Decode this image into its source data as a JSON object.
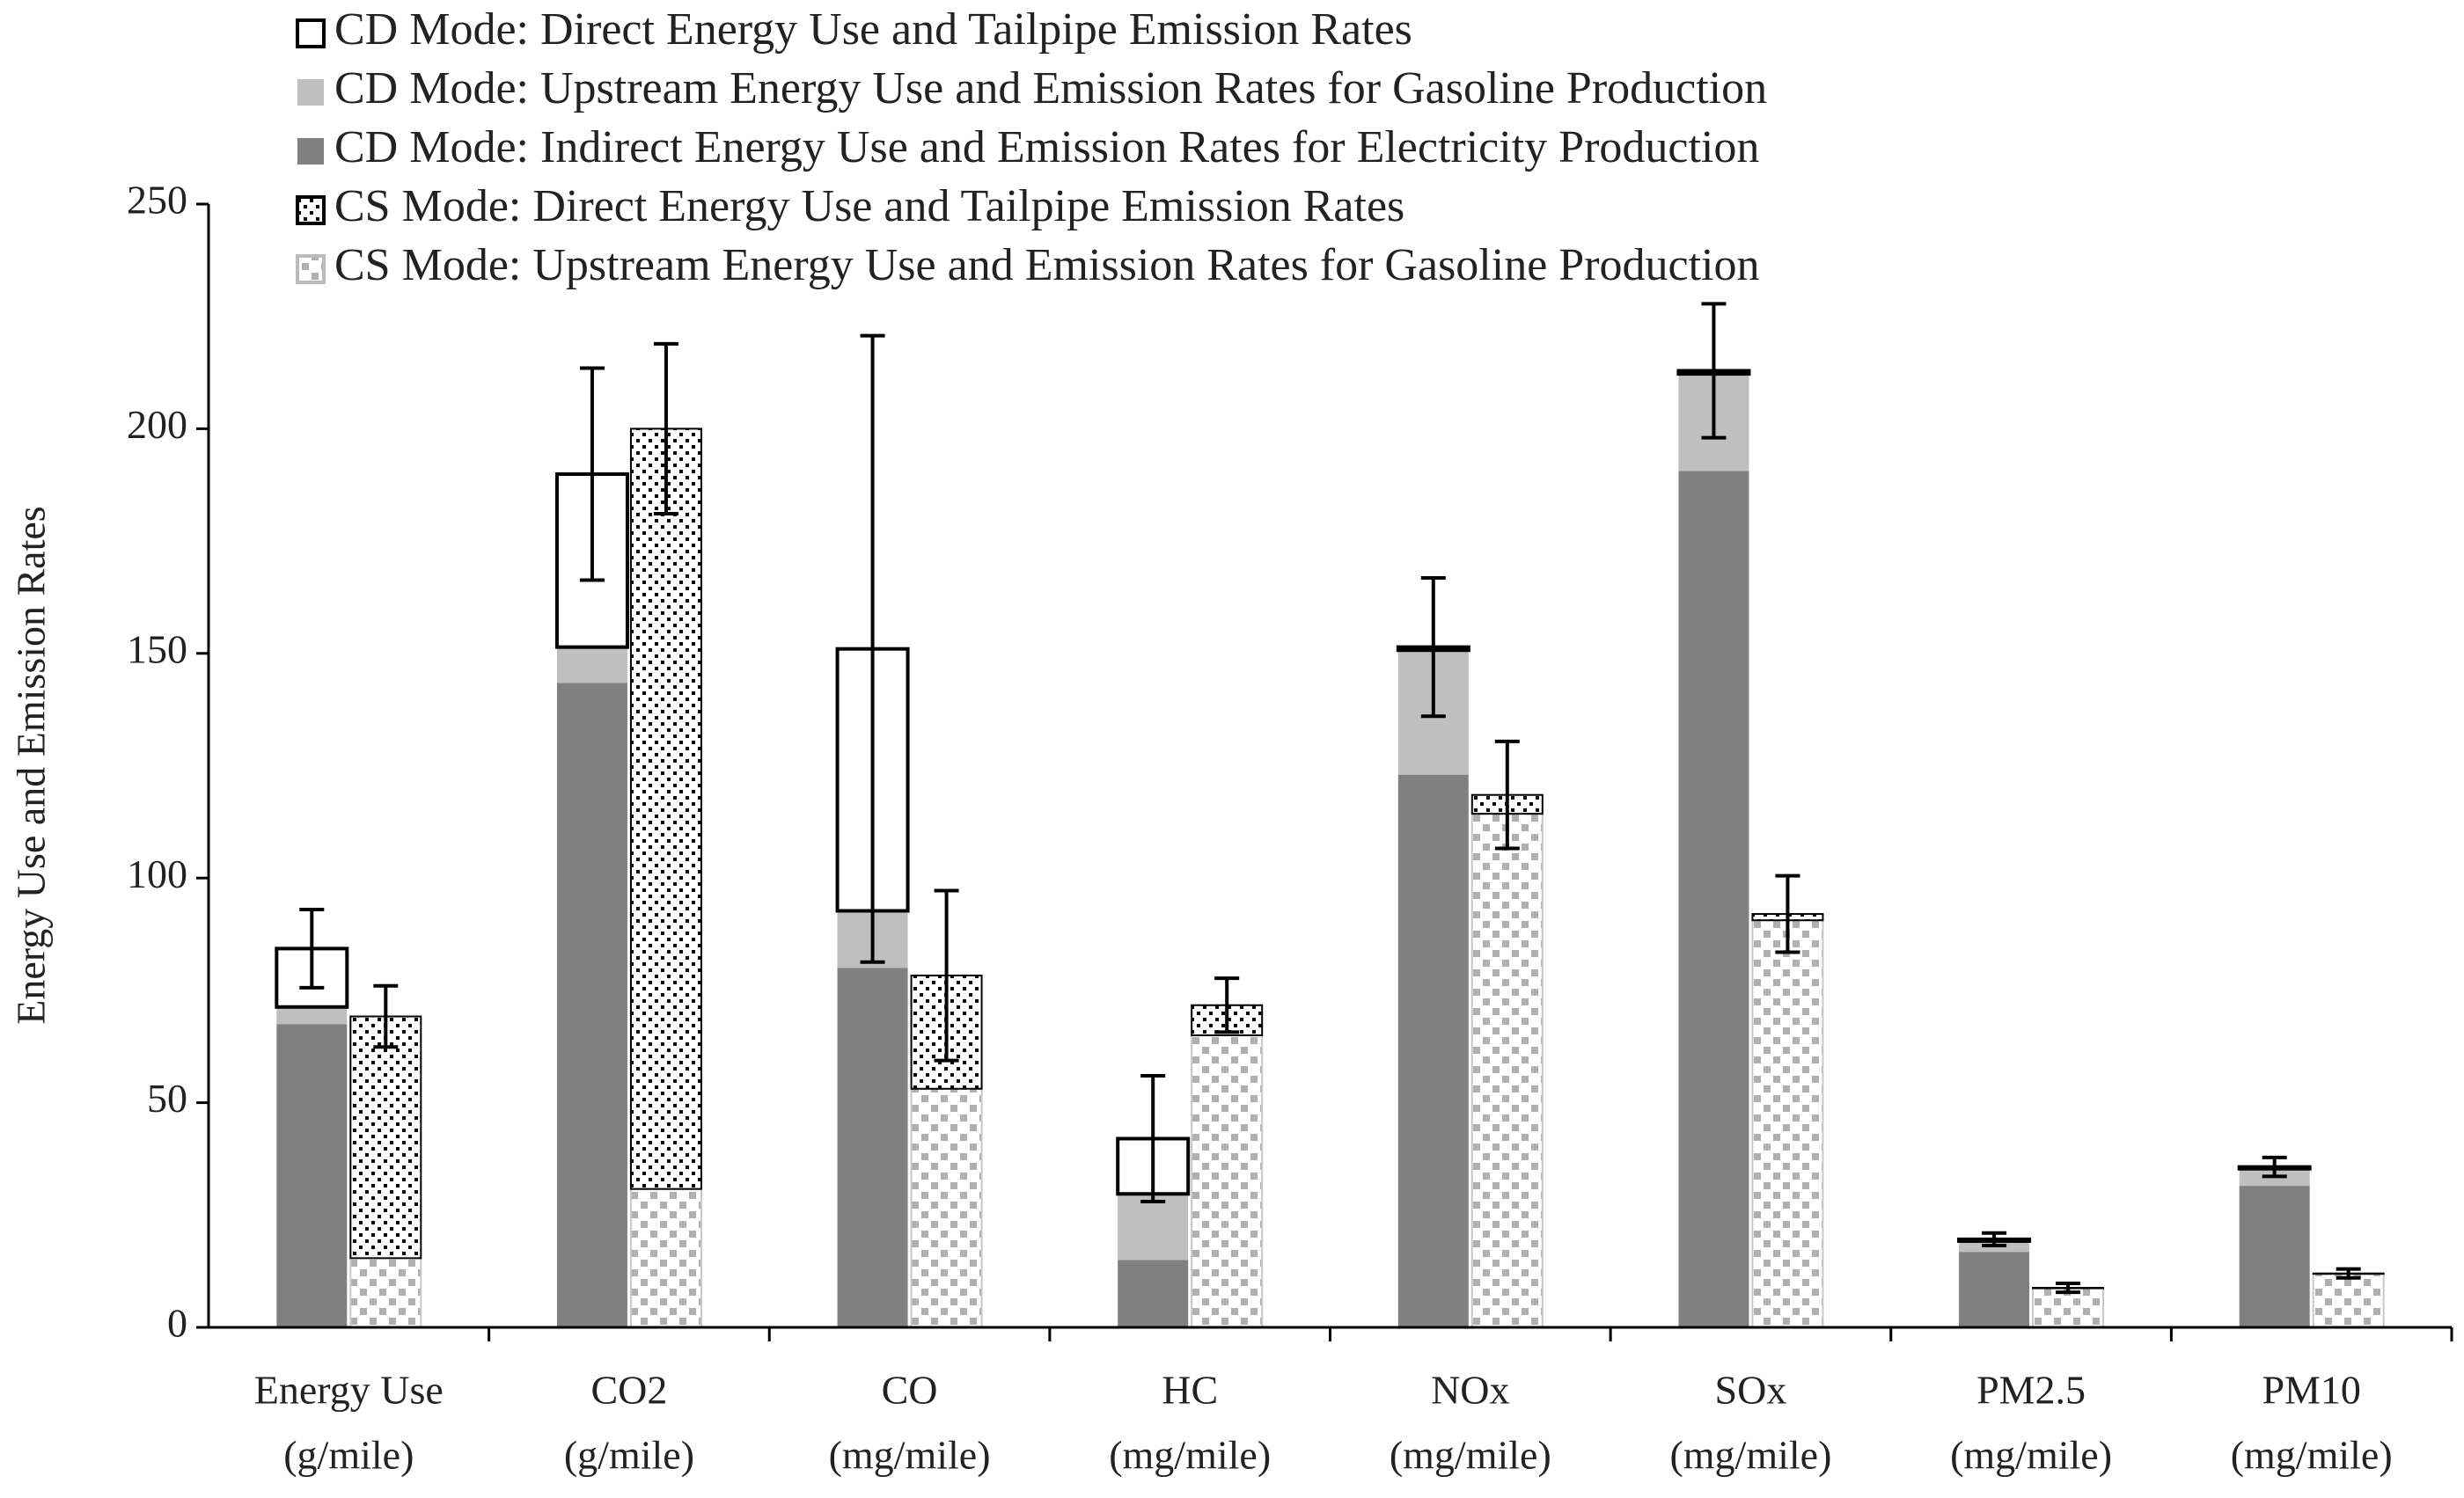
{
  "chart_data": {
    "type": "stacked-grouped-bar",
    "y_label": "Energy Use and Emission Rates",
    "categories": [
      [
        "Energy Use",
        "(g/mile)"
      ],
      [
        "CO2",
        "(g/mile)"
      ],
      [
        "CO",
        "(mg/mile)"
      ],
      [
        "HC",
        "(mg/mile)"
      ],
      [
        "NOx",
        "(mg/mile)"
      ],
      [
        "SOx",
        "(mg/mile)"
      ],
      [
        "PM2.5",
        "(mg/mile)"
      ],
      [
        "PM10",
        "(mg/mile)"
      ]
    ],
    "ylim": [
      0,
      250
    ],
    "yticks": [
      0,
      50,
      100,
      150,
      200,
      250
    ],
    "stacks": [
      {
        "series": [
          {
            "name": "CD Mode: Direct Energy Use and Tailpipe Emission Rates",
            "color": "#ffffff",
            "pattern": "none",
            "values": [
              13,
              38.5,
              58.3,
              12.3,
              0.7,
              0.7,
              0.4,
              0.4
            ]
          },
          {
            "name": "CD Mode: Upstream Energy Use and Emission Rates for Gasoline Production",
            "color": "#bfbfbf",
            "pattern": "none",
            "values": [
              3.8,
              8,
              12.7,
              14.7,
              27.7,
              21.6,
              2.4,
              3.8
            ]
          },
          {
            "name": "CD Mode: Indirect Energy Use and Emission Rates for Electricity Production",
            "color": "#808080",
            "pattern": "none",
            "values": [
              67.5,
              143.4,
              80,
              15,
              123,
              190.6,
              16.8,
              31.5
            ]
          }
        ],
        "errors": [
          8.7,
          23.6,
          69.7,
          14,
          15.4,
          14.9,
          1.4,
          2.1
        ]
      },
      {
        "series": [
          {
            "name": "CS Mode: Direct Energy Use and Tailpipe Emission Rates",
            "color": "#000000",
            "pattern": "dense-dots",
            "values": [
              53.8,
              169.2,
              25.2,
              6.7,
              4.2,
              1.4,
              0.1,
              0.1
            ]
          },
          {
            "name": "CS Mode: Upstream Energy Use and Emission Rates for Gasoline Production",
            "color": "#b0b0b0",
            "pattern": "sparse-dots",
            "values": [
              15.4,
              30.8,
              53.1,
              65,
              114.3,
              90.6,
              8.7,
              11.9
            ]
          }
        ],
        "errors": [
          6.8,
          18.9,
          18.9,
          6,
          11.9,
          8.5,
          1,
          1
        ]
      }
    ]
  }
}
